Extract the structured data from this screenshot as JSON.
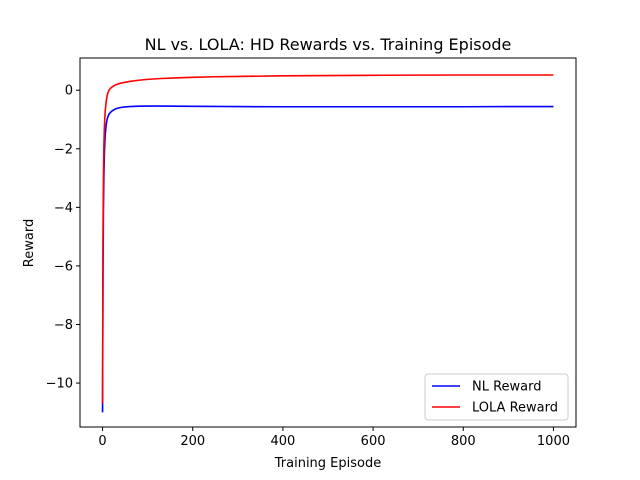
{
  "chart_data": {
    "type": "line",
    "title": "NL vs. LOLA: HD Rewards vs. Training Episode",
    "xlabel": "Training Episode",
    "ylabel": "Reward",
    "xlim": [
      -50,
      1050
    ],
    "ylim": [
      -11.5,
      1.1
    ],
    "xticks": [
      0,
      200,
      400,
      600,
      800,
      1000
    ],
    "yticks": [
      -10,
      -8,
      -6,
      -4,
      -2,
      0
    ],
    "grid": false,
    "legend": "lower-right",
    "series": [
      {
        "name": "NL Reward",
        "color": "#0000ff",
        "x": [
          0,
          1,
          2,
          3,
          4,
          5,
          6,
          8,
          10,
          12,
          15,
          20,
          25,
          30,
          40,
          50,
          60,
          80,
          100,
          130,
          160,
          200,
          250,
          300,
          400,
          500,
          600,
          700,
          800,
          900,
          1000
        ],
        "y": [
          -11.0,
          -6.3,
          -4.0,
          -2.9,
          -2.2,
          -1.8,
          -1.5,
          -1.2,
          -1.0,
          -0.9,
          -0.8,
          -0.72,
          -0.67,
          -0.63,
          -0.59,
          -0.57,
          -0.56,
          -0.545,
          -0.54,
          -0.54,
          -0.545,
          -0.55,
          -0.555,
          -0.56,
          -0.565,
          -0.565,
          -0.565,
          -0.565,
          -0.565,
          -0.56,
          -0.56
        ]
      },
      {
        "name": "LOLA Reward",
        "color": "#ff0000",
        "x": [
          0,
          1,
          2,
          3,
          4,
          5,
          6,
          8,
          10,
          12,
          15,
          20,
          25,
          30,
          40,
          50,
          60,
          80,
          100,
          130,
          160,
          200,
          250,
          300,
          400,
          500,
          600,
          700,
          800,
          900,
          1000
        ],
        "y": [
          -10.7,
          -5.0,
          -2.9,
          -1.9,
          -1.3,
          -0.95,
          -0.7,
          -0.4,
          -0.2,
          -0.08,
          0.02,
          0.1,
          0.15,
          0.19,
          0.24,
          0.27,
          0.3,
          0.34,
          0.37,
          0.4,
          0.42,
          0.44,
          0.46,
          0.47,
          0.49,
          0.5,
          0.51,
          0.515,
          0.52,
          0.52,
          0.52
        ]
      }
    ]
  }
}
